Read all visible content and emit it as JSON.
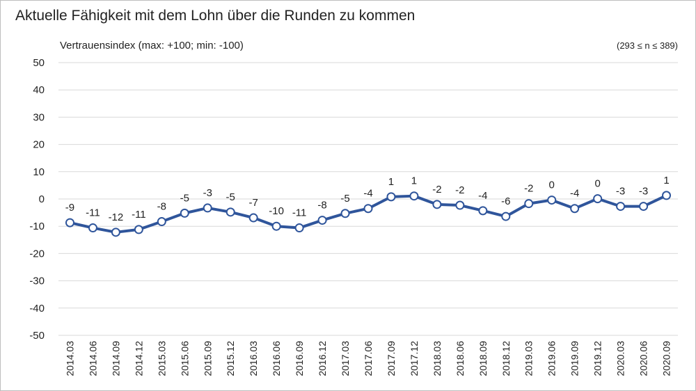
{
  "chart_data": {
    "type": "line",
    "title": "Aktuelle Fähigkeit mit dem Lohn über die Runden zu kommen",
    "ylabel": "Vertrauensindex (max: +100; min: -100)",
    "sample_note": "(293 ≤ n ≤ 389)",
    "xlabel": "",
    "ylim": [
      -50,
      50
    ],
    "yticks": [
      50,
      40,
      30,
      20,
      10,
      0,
      -10,
      -20,
      -30,
      -40,
      -50
    ],
    "grid": true,
    "legend": "none",
    "categories": [
      "2014.03",
      "2014.06",
      "2014.09",
      "2014.12",
      "2015.03",
      "2015.06",
      "2015.09",
      "2015.12",
      "2016.03",
      "2016.06",
      "2016.09",
      "2016.12",
      "2017.03",
      "2017.06",
      "2017.09",
      "2017.12",
      "2018.03",
      "2018.06",
      "2018.09",
      "2018.12",
      "2019.03",
      "2019.06",
      "2019.09",
      "2019.12",
      "2020.03",
      "2020.06",
      "2020.09"
    ],
    "series": [
      {
        "values": [
          -8.7,
          -10.6,
          -12.2,
          -11.2,
          -8.3,
          -5.2,
          -3.3,
          -4.8,
          -6.9,
          -10.0,
          -10.6,
          -7.8,
          -5.3,
          -3.5,
          0.8,
          1.1,
          -2.0,
          -2.3,
          -4.3,
          -6.4,
          -1.7,
          -0.4,
          -3.5,
          0.1,
          -2.7,
          -2.7,
          1.3
        ],
        "labels": [
          "-9",
          "-11",
          "-12",
          "-11",
          "-8",
          "-5",
          "-3",
          "-5",
          "-7",
          "-10",
          "-11",
          "-8",
          "-5",
          "-4",
          "1",
          "1",
          "-2",
          "-2",
          "-4",
          "-6",
          "-2",
          "0",
          "-4",
          "0",
          "-3",
          "-3",
          "1"
        ],
        "color": "#2f559b"
      }
    ]
  }
}
